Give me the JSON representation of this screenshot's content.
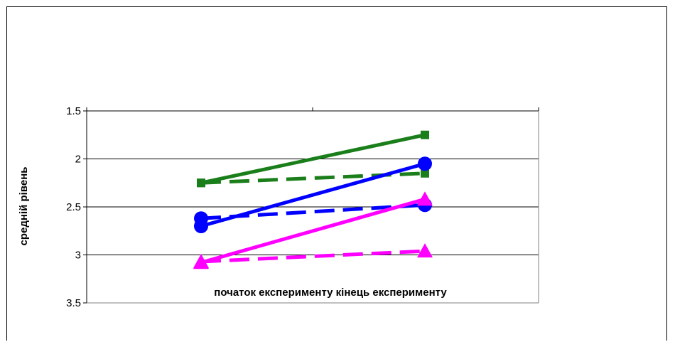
{
  "chart_data": {
    "type": "line",
    "title": "",
    "xlabel": "",
    "ylabel": "средній рівень",
    "categories_label": "початок експерименту кінець експерименту",
    "categories": [
      "початок експерименту",
      "кінець експерименту"
    ],
    "y_ticks": [
      "1.5",
      "2",
      "2.5",
      "3",
      "3.5"
    ],
    "ylim": [
      1.5,
      3.5
    ],
    "y_reversed": true,
    "grid": true,
    "legend": "none",
    "series": [
      {
        "values": [
          2.25,
          1.75
        ],
        "color": "#1a7f1a",
        "dashed": false,
        "marker": "square"
      },
      {
        "values": [
          2.25,
          2.15
        ],
        "color": "#1a7f1a",
        "dashed": true,
        "marker": "square"
      },
      {
        "values": [
          2.7,
          2.05
        ],
        "color": "#0000ff",
        "dashed": false,
        "marker": "circle"
      },
      {
        "values": [
          2.62,
          2.48
        ],
        "color": "#0000ff",
        "dashed": true,
        "marker": "circle"
      },
      {
        "values": [
          3.08,
          2.42
        ],
        "color": "#ff00ff",
        "dashed": false,
        "marker": "triangle"
      },
      {
        "values": [
          3.07,
          2.96
        ],
        "color": "#ff00ff",
        "dashed": true,
        "marker": "triangle"
      }
    ]
  }
}
